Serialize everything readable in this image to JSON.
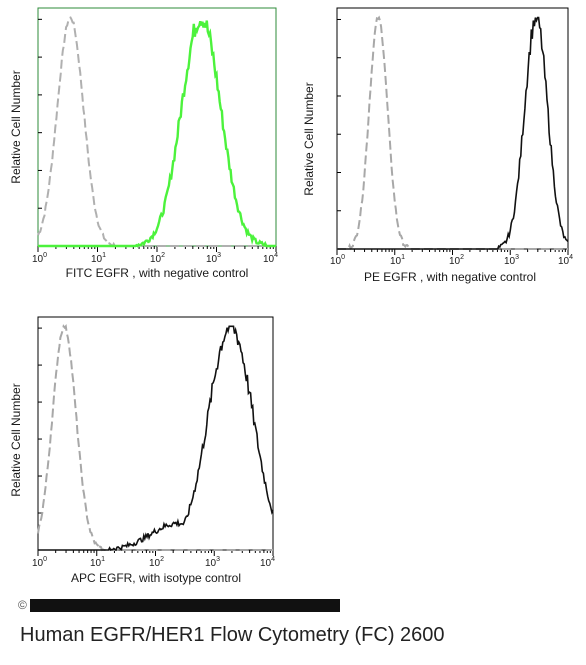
{
  "chart_data": [
    {
      "type": "area",
      "xlabel": "FITC  EGFR , with negative control",
      "ylabel": "Relative Cell Number",
      "x_scale": "log",
      "xlim": [
        1,
        10000
      ],
      "x_ticks": [
        "0",
        "1",
        "2",
        "3",
        "4"
      ],
      "frame_color": "#2e8b3a",
      "series": [
        {
          "color": "#b0b0b0",
          "style": "dashed",
          "peak_x": 3.5,
          "width_decades": 0.22
        },
        {
          "color": "#4cf23c",
          "style": "solid",
          "peak_x": 550,
          "width_decades": 0.33
        }
      ]
    },
    {
      "type": "area",
      "xlabel": "PE  EGFR , with negative control",
      "ylabel": "Relative Cell Number",
      "x_scale": "log",
      "xlim": [
        1,
        10000
      ],
      "x_ticks": [
        "0",
        "1",
        "2",
        "3",
        "4"
      ],
      "frame_color": "#000000",
      "series": [
        {
          "color": "#a8a8a8",
          "style": "dashed",
          "peak_x": 5.2,
          "width_decades": 0.16
        },
        {
          "color": "#111111",
          "style": "solid",
          "peak_x": 2800,
          "width_decades": 0.2
        }
      ]
    },
    {
      "type": "area",
      "xlabel": "APC EGFR, with isotype control",
      "ylabel": "Relative Cell Number",
      "x_scale": "log",
      "xlim": [
        1,
        10000
      ],
      "x_ticks": [
        "0",
        "1",
        "2",
        "3",
        "4"
      ],
      "frame_color": "#000000",
      "series": [
        {
          "color": "#a8a8a8",
          "style": "dashed",
          "peak_x": 2.8,
          "width_decades": 0.2
        },
        {
          "color": "#111111",
          "style": "solid",
          "peak_x": 1900,
          "width_decades": 0.38
        }
      ]
    }
  ],
  "tick_base": "10",
  "watermark": "©",
  "caption": "Human EGFR/HER1 Flow Cytometry (FC) 2600"
}
